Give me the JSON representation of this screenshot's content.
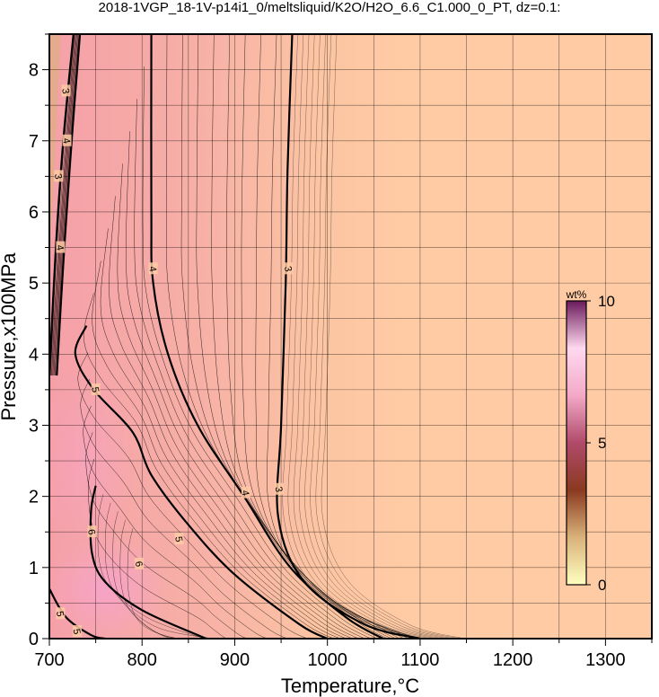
{
  "chart_data": {
    "type": "heatmap",
    "title": "2018-1VGP_18-1V-p14i1_0/meltsliquid/K2O/H2O_6.6_C1.000_0_PT, dz=0.1:",
    "xlabel": "Temperature,°C",
    "ylabel": "Pressure,x100MPa",
    "xlim": [
      700,
      1350
    ],
    "ylim": [
      0,
      8.5
    ],
    "xticks": [
      700,
      800,
      900,
      1000,
      1100,
      1200,
      1300
    ],
    "yticks": [
      0,
      1,
      2,
      3,
      4,
      5,
      6,
      7,
      8
    ],
    "grid": true,
    "colorbar": {
      "label": "wt%",
      "min": 0,
      "max": 10,
      "ticks": [
        0,
        5,
        10
      ],
      "colors": [
        "#ffffc0",
        "#d9b27a",
        "#8a3a20",
        "#b04a6a",
        "#f3a9c7",
        "#ffd9ef",
        "#6a1a5a"
      ]
    },
    "background_color": "#ffcba4",
    "contours": [
      {
        "label": "3",
        "points": [
          [
            962,
            8.5
          ],
          [
            957,
            6.6
          ],
          [
            955,
            5.0
          ],
          [
            950,
            3.0
          ],
          [
            947,
            1.7
          ],
          [
            975,
            0.8
          ],
          [
            1040,
            0.2
          ],
          [
            1100,
            0.0
          ]
        ]
      },
      {
        "label": "4",
        "points": [
          [
            810,
            8.5
          ],
          [
            810,
            6.0
          ],
          [
            812,
            5.0
          ],
          [
            828,
            4.0
          ],
          [
            860,
            3.0
          ],
          [
            910,
            2.0
          ],
          [
            960,
            1.0
          ],
          [
            1020,
            0.3
          ],
          [
            1060,
            0.0
          ]
        ]
      },
      {
        "label": "5",
        "points": [
          [
            740,
            4.4
          ],
          [
            728,
            4.0
          ],
          [
            748,
            3.5
          ],
          [
            790,
            2.9
          ],
          [
            810,
            2.3
          ],
          [
            850,
            1.6
          ],
          [
            900,
            0.9
          ],
          [
            970,
            0.2
          ],
          [
            1000,
            0.0
          ]
        ]
      },
      {
        "label": "6",
        "points": [
          [
            750,
            2.15
          ],
          [
            745,
            1.8
          ],
          [
            746,
            1.2
          ],
          [
            760,
            0.8
          ],
          [
            800,
            0.4
          ],
          [
            860,
            0.05
          ],
          [
            870,
            0.0
          ]
        ]
      },
      {
        "label": "5",
        "points": [
          [
            700,
            0.7
          ],
          [
            718,
            0.3
          ],
          [
            745,
            0.05
          ],
          [
            760,
            0.0
          ]
        ]
      },
      {
        "label": "4",
        "points": [
          [
            700,
            3.7
          ],
          [
            707,
            5.5
          ],
          [
            715,
            7.0
          ],
          [
            726,
            8.5
          ]
        ]
      },
      {
        "label": "3",
        "points": [
          [
            708,
            3.7
          ],
          [
            716,
            5.5
          ],
          [
            724,
            7.0
          ],
          [
            733,
            8.5
          ]
        ]
      }
    ],
    "contour_labels": [
      {
        "text": "3",
        "x": 958,
        "y": 5.2
      },
      {
        "text": "3",
        "x": 948,
        "y": 2.1
      },
      {
        "text": "4",
        "x": 812,
        "y": 5.2
      },
      {
        "text": "4",
        "x": 912,
        "y": 2.05
      },
      {
        "text": "5",
        "x": 750,
        "y": 3.5
      },
      {
        "text": "5",
        "x": 840,
        "y": 1.4
      },
      {
        "text": "6",
        "x": 746,
        "y": 1.5
      },
      {
        "text": "6",
        "x": 797,
        "y": 1.05
      },
      {
        "text": "5",
        "x": 712,
        "y": 0.35
      },
      {
        "text": "5",
        "x": 730,
        "y": 0.1
      },
      {
        "text": "3",
        "x": 718,
        "y": 7.7
      },
      {
        "text": "4",
        "x": 719,
        "y": 7.0
      },
      {
        "text": "3",
        "x": 710,
        "y": 6.5
      },
      {
        "text": "4",
        "x": 712,
        "y": 5.5
      }
    ]
  }
}
